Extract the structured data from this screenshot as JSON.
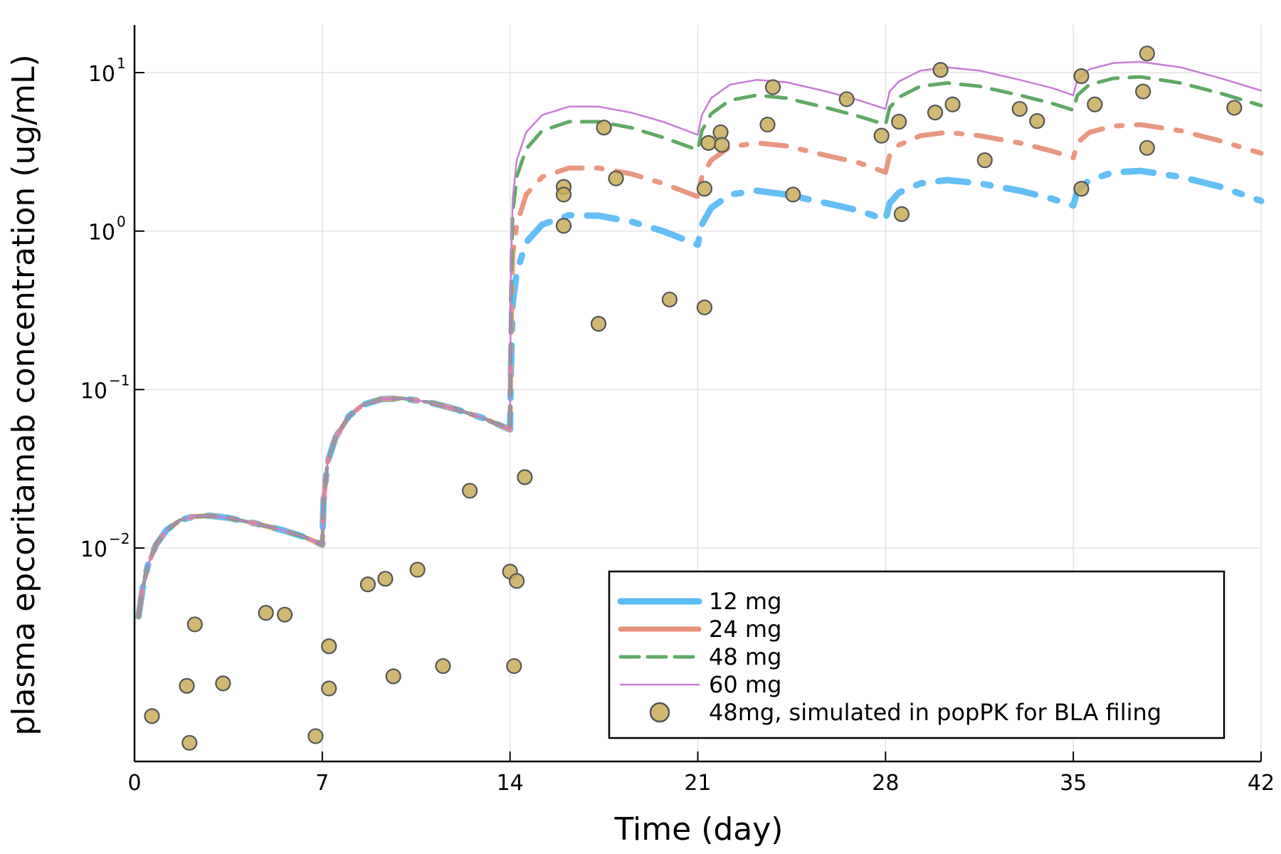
{
  "chart_data": {
    "type": "line",
    "title": "",
    "xlabel": "Time (day)",
    "ylabel": "plasma epcoritamab concentration (ug/mL)",
    "xlim": [
      0,
      42
    ],
    "x_ticks": [
      0,
      7,
      14,
      21,
      28,
      35,
      42
    ],
    "x_tick_labels": [
      "0",
      "7",
      "14",
      "21",
      "28",
      "35",
      "42"
    ],
    "y_scale": "log10",
    "ylim": [
      0.00045,
      20
    ],
    "y_ticks": [
      0.01,
      0.1,
      1,
      10
    ],
    "y_tick_labels": [
      {
        "base": "10",
        "exp": "−2"
      },
      {
        "base": "10",
        "exp": "−1"
      },
      {
        "base": "10",
        "exp": "0"
      },
      {
        "base": "10",
        "exp": "1"
      }
    ],
    "grid": true,
    "legend_position": "bottom-right",
    "series": [
      {
        "name": "12 mg",
        "color": "#5bbcf5",
        "style": "dashdot-thick",
        "points": [
          [
            0.15,
            0.0037
          ],
          [
            0.3,
            0.0055
          ],
          [
            0.5,
            0.0078
          ],
          [
            0.8,
            0.0105
          ],
          [
            1.2,
            0.013
          ],
          [
            1.7,
            0.015
          ],
          [
            2.2,
            0.0158
          ],
          [
            2.8,
            0.016
          ],
          [
            3.5,
            0.0155
          ],
          [
            4.5,
            0.0143
          ],
          [
            5.5,
            0.013
          ],
          [
            6.3,
            0.0118
          ],
          [
            7.0,
            0.0105
          ],
          [
            7.05,
            0.02
          ],
          [
            7.2,
            0.035
          ],
          [
            7.5,
            0.05
          ],
          [
            8.0,
            0.068
          ],
          [
            8.5,
            0.08
          ],
          [
            9.2,
            0.087
          ],
          [
            10.0,
            0.088
          ],
          [
            11.0,
            0.083
          ],
          [
            12.0,
            0.075
          ],
          [
            13.0,
            0.066
          ],
          [
            14.0,
            0.056
          ],
          [
            14.03,
            0.12
          ],
          [
            14.1,
            0.35
          ],
          [
            14.25,
            0.55
          ],
          [
            14.6,
            0.85
          ],
          [
            15.2,
            1.1
          ],
          [
            16.2,
            1.26
          ],
          [
            17.3,
            1.25
          ],
          [
            18.5,
            1.15
          ],
          [
            19.7,
            1.0
          ],
          [
            21.0,
            0.82
          ],
          [
            21.15,
            1.1
          ],
          [
            21.5,
            1.4
          ],
          [
            22.2,
            1.7
          ],
          [
            23.2,
            1.8
          ],
          [
            24.3,
            1.7
          ],
          [
            25.8,
            1.5
          ],
          [
            27.0,
            1.35
          ],
          [
            28.0,
            1.18
          ],
          [
            28.15,
            1.5
          ],
          [
            28.5,
            1.75
          ],
          [
            29.3,
            2.0
          ],
          [
            30.3,
            2.1
          ],
          [
            31.5,
            2.0
          ],
          [
            33.0,
            1.8
          ],
          [
            34.2,
            1.6
          ],
          [
            35.0,
            1.45
          ],
          [
            35.15,
            1.8
          ],
          [
            35.6,
            2.1
          ],
          [
            36.5,
            2.35
          ],
          [
            37.5,
            2.4
          ],
          [
            39.0,
            2.2
          ],
          [
            40.5,
            1.9
          ],
          [
            42.0,
            1.55
          ]
        ]
      },
      {
        "name": "24 mg",
        "color": "#e8917a",
        "style": "dashdot",
        "points": [
          [
            0.15,
            0.0037
          ],
          [
            0.3,
            0.0055
          ],
          [
            0.5,
            0.0078
          ],
          [
            0.8,
            0.0105
          ],
          [
            1.2,
            0.013
          ],
          [
            1.7,
            0.015
          ],
          [
            2.2,
            0.0158
          ],
          [
            2.8,
            0.016
          ],
          [
            3.5,
            0.0155
          ],
          [
            4.5,
            0.0143
          ],
          [
            5.5,
            0.013
          ],
          [
            6.3,
            0.0118
          ],
          [
            7.0,
            0.0105
          ],
          [
            7.05,
            0.02
          ],
          [
            7.2,
            0.035
          ],
          [
            7.5,
            0.05
          ],
          [
            8.0,
            0.068
          ],
          [
            8.5,
            0.08
          ],
          [
            9.2,
            0.087
          ],
          [
            10.0,
            0.088
          ],
          [
            11.0,
            0.083
          ],
          [
            12.0,
            0.075
          ],
          [
            13.0,
            0.066
          ],
          [
            14.0,
            0.056
          ],
          [
            14.03,
            0.2
          ],
          [
            14.1,
            0.7
          ],
          [
            14.25,
            1.1
          ],
          [
            14.6,
            1.7
          ],
          [
            15.2,
            2.2
          ],
          [
            16.2,
            2.5
          ],
          [
            17.3,
            2.5
          ],
          [
            18.5,
            2.3
          ],
          [
            19.7,
            2.0
          ],
          [
            21.0,
            1.65
          ],
          [
            21.15,
            2.2
          ],
          [
            21.5,
            2.8
          ],
          [
            22.2,
            3.4
          ],
          [
            23.2,
            3.6
          ],
          [
            24.3,
            3.45
          ],
          [
            25.8,
            3.0
          ],
          [
            27.0,
            2.7
          ],
          [
            28.0,
            2.35
          ],
          [
            28.15,
            3.0
          ],
          [
            28.5,
            3.5
          ],
          [
            29.3,
            4.0
          ],
          [
            30.3,
            4.2
          ],
          [
            31.5,
            4.0
          ],
          [
            33.0,
            3.6
          ],
          [
            34.2,
            3.2
          ],
          [
            35.0,
            2.9
          ],
          [
            35.15,
            3.6
          ],
          [
            35.6,
            4.2
          ],
          [
            36.5,
            4.6
          ],
          [
            37.5,
            4.7
          ],
          [
            39.0,
            4.3
          ],
          [
            40.5,
            3.7
          ],
          [
            42.0,
            3.1
          ]
        ]
      },
      {
        "name": "48 mg",
        "color": "#5fa964",
        "style": "dash",
        "points": [
          [
            0.15,
            0.0037
          ],
          [
            0.3,
            0.0055
          ],
          [
            0.5,
            0.0078
          ],
          [
            0.8,
            0.0105
          ],
          [
            1.2,
            0.013
          ],
          [
            1.7,
            0.015
          ],
          [
            2.2,
            0.0158
          ],
          [
            2.8,
            0.016
          ],
          [
            3.5,
            0.0155
          ],
          [
            4.5,
            0.0143
          ],
          [
            5.5,
            0.013
          ],
          [
            6.3,
            0.0118
          ],
          [
            7.0,
            0.0105
          ],
          [
            7.05,
            0.02
          ],
          [
            7.2,
            0.035
          ],
          [
            7.5,
            0.05
          ],
          [
            8.0,
            0.068
          ],
          [
            8.5,
            0.08
          ],
          [
            9.2,
            0.087
          ],
          [
            10.0,
            0.088
          ],
          [
            11.0,
            0.083
          ],
          [
            12.0,
            0.075
          ],
          [
            13.0,
            0.066
          ],
          [
            14.0,
            0.056
          ],
          [
            14.03,
            0.4
          ],
          [
            14.1,
            1.3
          ],
          [
            14.25,
            2.2
          ],
          [
            14.6,
            3.3
          ],
          [
            15.2,
            4.3
          ],
          [
            16.2,
            4.9
          ],
          [
            17.3,
            4.9
          ],
          [
            18.5,
            4.5
          ],
          [
            19.7,
            3.9
          ],
          [
            21.0,
            3.25
          ],
          [
            21.15,
            4.3
          ],
          [
            21.5,
            5.5
          ],
          [
            22.2,
            6.7
          ],
          [
            23.2,
            7.2
          ],
          [
            24.3,
            6.9
          ],
          [
            25.8,
            6.0
          ],
          [
            27.0,
            5.3
          ],
          [
            28.0,
            4.7
          ],
          [
            28.15,
            6.0
          ],
          [
            28.5,
            7.0
          ],
          [
            29.3,
            8.2
          ],
          [
            30.3,
            8.6
          ],
          [
            31.5,
            8.2
          ],
          [
            33.0,
            7.2
          ],
          [
            34.2,
            6.4
          ],
          [
            35.0,
            5.8
          ],
          [
            35.15,
            7.2
          ],
          [
            35.6,
            8.4
          ],
          [
            36.5,
            9.2
          ],
          [
            37.5,
            9.4
          ],
          [
            39.0,
            8.6
          ],
          [
            40.5,
            7.4
          ],
          [
            42.0,
            6.2
          ]
        ]
      },
      {
        "name": "60 mg",
        "color": "#c77ed6",
        "style": "solid-thin",
        "points": [
          [
            0.15,
            0.0037
          ],
          [
            0.3,
            0.0055
          ],
          [
            0.5,
            0.0078
          ],
          [
            0.8,
            0.0105
          ],
          [
            1.2,
            0.013
          ],
          [
            1.7,
            0.015
          ],
          [
            2.2,
            0.0158
          ],
          [
            2.8,
            0.016
          ],
          [
            3.5,
            0.0155
          ],
          [
            4.5,
            0.0143
          ],
          [
            5.5,
            0.013
          ],
          [
            6.3,
            0.0118
          ],
          [
            7.0,
            0.0105
          ],
          [
            7.05,
            0.02
          ],
          [
            7.2,
            0.035
          ],
          [
            7.5,
            0.05
          ],
          [
            8.0,
            0.068
          ],
          [
            8.5,
            0.08
          ],
          [
            9.2,
            0.087
          ],
          [
            10.0,
            0.088
          ],
          [
            11.0,
            0.083
          ],
          [
            12.0,
            0.075
          ],
          [
            13.0,
            0.066
          ],
          [
            14.0,
            0.056
          ],
          [
            14.03,
            0.5
          ],
          [
            14.1,
            1.6
          ],
          [
            14.25,
            2.8
          ],
          [
            14.6,
            4.2
          ],
          [
            15.2,
            5.4
          ],
          [
            16.2,
            6.1
          ],
          [
            17.3,
            6.1
          ],
          [
            18.5,
            5.6
          ],
          [
            19.7,
            4.9
          ],
          [
            21.0,
            4.05
          ],
          [
            21.15,
            5.4
          ],
          [
            21.5,
            6.9
          ],
          [
            22.2,
            8.4
          ],
          [
            23.2,
            9.0
          ],
          [
            24.3,
            8.7
          ],
          [
            25.8,
            7.6
          ],
          [
            27.0,
            6.7
          ],
          [
            28.0,
            5.9
          ],
          [
            28.15,
            7.6
          ],
          [
            28.5,
            8.8
          ],
          [
            29.3,
            10.3
          ],
          [
            30.3,
            10.8
          ],
          [
            31.5,
            10.3
          ],
          [
            33.0,
            9.0
          ],
          [
            34.2,
            8.0
          ],
          [
            35.0,
            7.2
          ],
          [
            35.15,
            9.0
          ],
          [
            35.6,
            10.5
          ],
          [
            36.5,
            11.5
          ],
          [
            37.5,
            11.7
          ],
          [
            39.0,
            10.8
          ],
          [
            40.5,
            9.2
          ],
          [
            42.0,
            7.7
          ]
        ]
      },
      {
        "name": "48mg, simulated in popPK for BLA filing",
        "color": "#c9ad5c",
        "style": "scatter",
        "points": [
          [
            0.65,
            0.00087
          ],
          [
            1.95,
            0.00135
          ],
          [
            2.05,
            0.00059
          ],
          [
            2.25,
            0.0033
          ],
          [
            3.3,
            0.0014
          ],
          [
            4.9,
            0.0039
          ],
          [
            5.6,
            0.0038
          ],
          [
            6.75,
            0.00065
          ],
          [
            7.25,
            0.0024
          ],
          [
            7.25,
            0.0013
          ],
          [
            8.7,
            0.0059
          ],
          [
            9.35,
            0.0064
          ],
          [
            9.65,
            0.00155
          ],
          [
            10.55,
            0.0073
          ],
          [
            11.5,
            0.0018
          ],
          [
            12.5,
            0.023
          ],
          [
            14.0,
            0.0071
          ],
          [
            14.15,
            0.0018
          ],
          [
            14.25,
            0.0062
          ],
          [
            14.55,
            0.028
          ],
          [
            16.0,
            1.9
          ],
          [
            16.0,
            1.7
          ],
          [
            16.0,
            1.08
          ],
          [
            17.3,
            0.26
          ],
          [
            17.5,
            4.5
          ],
          [
            17.95,
            2.15
          ],
          [
            19.95,
            0.37
          ],
          [
            21.25,
            0.33
          ],
          [
            21.25,
            1.85
          ],
          [
            21.4,
            3.6
          ],
          [
            21.85,
            4.2
          ],
          [
            21.9,
            3.5
          ],
          [
            23.6,
            4.7
          ],
          [
            23.8,
            8.1
          ],
          [
            24.55,
            1.7
          ],
          [
            26.55,
            6.8
          ],
          [
            27.85,
            4.0
          ],
          [
            28.5,
            4.9
          ],
          [
            28.6,
            1.28
          ],
          [
            29.85,
            5.6
          ],
          [
            30.05,
            10.4
          ],
          [
            30.5,
            6.3
          ],
          [
            31.7,
            2.8
          ],
          [
            33.0,
            5.9
          ],
          [
            33.65,
            4.95
          ],
          [
            35.3,
            9.5
          ],
          [
            35.3,
            1.85
          ],
          [
            35.8,
            6.3
          ],
          [
            37.6,
            7.6
          ],
          [
            37.75,
            13.2
          ],
          [
            37.75,
            3.35
          ],
          [
            41.0,
            6.0
          ]
        ]
      }
    ]
  }
}
